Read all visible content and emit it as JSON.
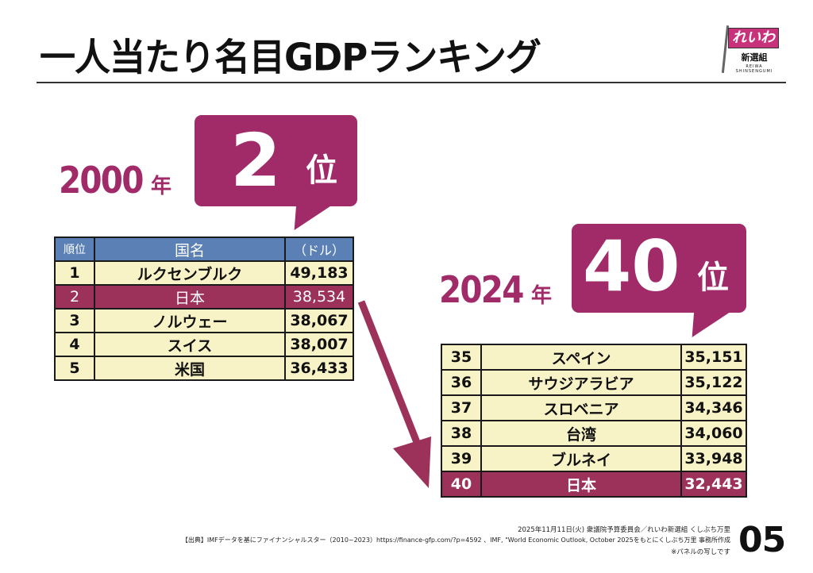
{
  "header": {
    "title": "一人当たり名目GDPランキング",
    "logo": {
      "flag_text": "れいわ",
      "sub_text": "新選組",
      "tiny_text": "REIWA SHINSENGUMI"
    }
  },
  "colors": {
    "accent": "#a12a68",
    "header_row": "#5b80b5",
    "row_bg": "#f8f2c7",
    "highlight_row": "#9c3159"
  },
  "panel_2000": {
    "year": "2000",
    "year_unit": "年",
    "rank_number": "2",
    "rank_unit": "位",
    "table": {
      "headers": [
        "順位",
        "国名",
        "（ドル）"
      ],
      "rows": [
        {
          "rank": "1",
          "country": "ルクセンブルク",
          "value": "49,183",
          "highlight": false
        },
        {
          "rank": "2",
          "country": "日本",
          "value": "38,534",
          "highlight": true
        },
        {
          "rank": "3",
          "country": "ノルウェー",
          "value": "38,067",
          "highlight": false
        },
        {
          "rank": "4",
          "country": "スイス",
          "value": "38,007",
          "highlight": false
        },
        {
          "rank": "5",
          "country": "米国",
          "value": "36,433",
          "highlight": false
        }
      ]
    }
  },
  "panel_2024": {
    "year": "2024",
    "year_unit": "年",
    "rank_number": "40",
    "rank_unit": "位",
    "table": {
      "rows": [
        {
          "rank": "35",
          "country": "スペイン",
          "value": "35,151",
          "highlight": false
        },
        {
          "rank": "36",
          "country": "サウジアラビア",
          "value": "35,122",
          "highlight": false
        },
        {
          "rank": "37",
          "country": "スロベニア",
          "value": "34,346",
          "highlight": false
        },
        {
          "rank": "38",
          "country": "台湾",
          "value": "34,060",
          "highlight": false
        },
        {
          "rank": "39",
          "country": "ブルネイ",
          "value": "33,948",
          "highlight": false
        },
        {
          "rank": "40",
          "country": "日本",
          "value": "32,443",
          "highlight": true
        }
      ]
    }
  },
  "footer": {
    "date_line": "2025年11月11日(火) 衆議院予算委員会／れいわ新選組 くしぶち万里",
    "source_line": "【出典】IMFデータを基にファイナンシャルスター（2010~2023）https://finance-gfp.com/?p=4592 、IMF, \"World Economic Outlook, October 2025をもとにくしぶち万里 事務所作成",
    "note_line": "※パネルの写しです",
    "page_number": "05"
  }
}
